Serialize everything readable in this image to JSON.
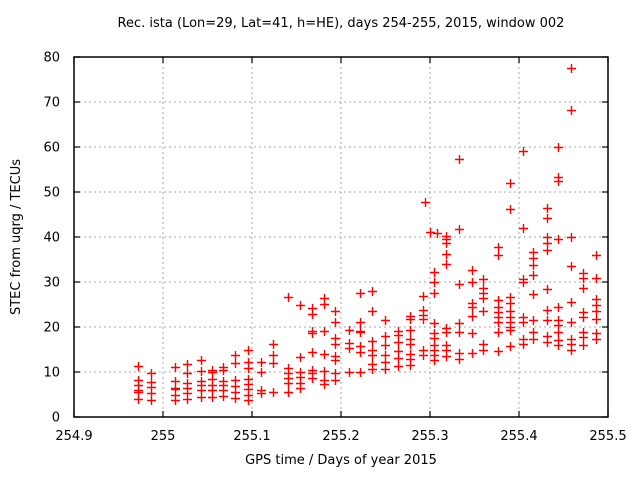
{
  "window": {
    "background": "#ffffff"
  },
  "chart_data": {
    "type": "scatter",
    "title": "Rec. ista (Lon=29, Lat=41, h=HE), days 254-255, 2015, window 002",
    "xlabel": "GPS time / Days of year 2015",
    "ylabel": "STEC from uqrg / TECUs",
    "xlim": [
      254.9,
      255.5
    ],
    "ylim": [
      0,
      80
    ],
    "xticks": [
      254.9,
      255.0,
      255.1,
      255.2,
      255.3,
      255.4,
      255.5
    ],
    "xtick_labels": [
      "254.9",
      "255",
      "255.1",
      "255.2",
      "255.3",
      "255.4",
      "255.5"
    ],
    "yticks": [
      0,
      10,
      20,
      30,
      40,
      50,
      60,
      70,
      80
    ],
    "ytick_labels": [
      "0",
      "10",
      "20",
      "30",
      "40",
      "50",
      "60",
      "70",
      "80"
    ],
    "grid": true,
    "legend": "none",
    "marker": {
      "shape": "plus",
      "color": "#ff0000",
      "size": 9
    },
    "grid_color": "#a8a8a8",
    "border_color": "#000000",
    "series": [
      {
        "name": "STEC",
        "columns": [
          {
            "x": 254.972,
            "y": [
              11.3,
              8.2,
              7.1,
              5.9,
              5.6,
              3.9
            ]
          },
          {
            "x": 254.986,
            "y": [
              9.7,
              7.8,
              6.6,
              5.4,
              3.8
            ]
          },
          {
            "x": 255.013,
            "y": [
              11.2,
              7.9,
              6.5,
              6.2,
              4.9,
              3.8
            ]
          },
          {
            "x": 255.027,
            "y": [
              11.8,
              9.7,
              7.5,
              6.4,
              5.3,
              3.9
            ]
          },
          {
            "x": 255.043,
            "y": [
              12.7,
              10.3,
              8.1,
              7.1,
              6.0,
              4.5
            ]
          },
          {
            "x": 255.055,
            "y": [
              10.4,
              10.0,
              8.4,
              7.1,
              5.9,
              4.5
            ]
          },
          {
            "x": 255.067,
            "y": [
              11.2,
              10.4,
              8.1,
              7.1,
              6.0,
              4.7
            ]
          },
          {
            "x": 255.081,
            "y": [
              13.7,
              12.1,
              8.2,
              6.9,
              5.6,
              4.2
            ]
          },
          {
            "x": 255.095,
            "y": [
              15.0,
              12.3,
              11.0,
              8.4,
              7.3,
              6.2,
              4.9,
              3.8
            ]
          },
          {
            "x": 255.11,
            "y": [
              12.3,
              10.1,
              6.0,
              5.3
            ]
          },
          {
            "x": 255.124,
            "y": [
              16.2,
              13.8,
              11.9,
              5.6
            ]
          },
          {
            "x": 255.14,
            "y": [
              26.7,
              10.8,
              9.7,
              8.6,
              7.5,
              5.6
            ]
          },
          {
            "x": 255.154,
            "y": [
              25.0,
              13.4,
              10.1,
              9.0,
              7.5,
              6.4
            ]
          },
          {
            "x": 255.167,
            "y": [
              24.2,
              22.9,
              19.2,
              18.7,
              14.5,
              10.4,
              9.7,
              8.6
            ]
          },
          {
            "x": 255.181,
            "y": [
              26.4,
              25.1,
              19.1,
              14.1,
              10.3,
              8.2,
              7.3
            ]
          },
          {
            "x": 255.193,
            "y": [
              23.6,
              21.2,
              17.5,
              16.2,
              13.6,
              12.6,
              9.7,
              8.3
            ]
          },
          {
            "x": 255.209,
            "y": [
              19.3,
              16.4,
              15.3,
              10.1
            ]
          },
          {
            "x": 255.221,
            "y": [
              27.6,
              21.2,
              19.2,
              18.9,
              15.8,
              14.4,
              9.9
            ]
          },
          {
            "x": 255.235,
            "y": [
              28.1,
              23.6,
              16.8,
              14.9,
              13.7,
              11.8,
              10.7
            ]
          },
          {
            "x": 255.249,
            "y": [
              21.6,
              17.9,
              16.1,
              13.7,
              12.2,
              10.7
            ]
          },
          {
            "x": 255.264,
            "y": [
              19.2,
              18.2,
              16.6,
              14.7,
              13.2,
              11.3
            ]
          },
          {
            "x": 255.277,
            "y": [
              22.5,
              21.8,
              19.4,
              17.4,
              16.3,
              13.9,
              13.0,
              11.6
            ]
          },
          {
            "x": 255.292,
            "y": [
              26.9,
              23.8,
              22.7,
              21.7,
              14.8,
              13.7
            ]
          },
          {
            "x": 255.294,
            "y": [
              47.8
            ]
          },
          {
            "x": 255.3,
            "y": [
              41.2
            ]
          },
          {
            "x": 255.304,
            "y": [
              32.3,
              30.1,
              27.5,
              20.8,
              18.6,
              17.5,
              16.0,
              14.9,
              13.8,
              12.7
            ]
          },
          {
            "x": 255.308,
            "y": [
              41.0
            ]
          },
          {
            "x": 255.318,
            "y": [
              40.2,
              39.5,
              38.6,
              36.2,
              34.1,
              19.8,
              18.8,
              16.0,
              14.9,
              13.5
            ]
          },
          {
            "x": 255.333,
            "y": [
              57.3,
              41.7,
              29.6,
              21.0,
              19.0,
              14.2,
              13.0
            ]
          },
          {
            "x": 255.347,
            "y": [
              32.7,
              30.1,
              25.4,
              24.5,
              22.4,
              18.7,
              14.3
            ]
          },
          {
            "x": 255.36,
            "y": [
              30.6,
              28.6,
              27.5,
              26.4,
              23.6,
              16.2,
              15.0
            ]
          },
          {
            "x": 255.376,
            "y": [
              37.7,
              36.0,
              26.0,
              24.5,
              23.4,
              22.2,
              21.2,
              19.0,
              14.7
            ]
          },
          {
            "x": 255.39,
            "y": [
              52.1,
              46.2,
              26.6,
              25.4,
              23.6,
              22.2,
              21.2,
              19.9,
              19.3,
              15.8
            ]
          },
          {
            "x": 255.404,
            "y": [
              59.2,
              41.9,
              30.6,
              30.0,
              22.2,
              21.2,
              17.3,
              16.2
            ]
          },
          {
            "x": 255.416,
            "y": [
              36.7,
              35.3,
              33.8,
              31.6,
              27.3,
              21.6,
              19.0,
              17.3
            ]
          },
          {
            "x": 255.431,
            "y": [
              46.4,
              44.2,
              39.9,
              38.7,
              37.1,
              28.4,
              23.8,
              21.6,
              18.0,
              16.7
            ]
          },
          {
            "x": 255.444,
            "y": [
              59.9,
              53.4,
              52.5,
              39.5,
              24.5,
              21.6,
              20.4,
              19.0,
              17.1,
              16.0
            ]
          },
          {
            "x": 255.458,
            "y": [
              77.5,
              68.2,
              39.9,
              33.6,
              25.6,
              21.2,
              17.3,
              16.2,
              14.9
            ]
          },
          {
            "x": 255.472,
            "y": [
              31.9,
              30.8,
              28.6,
              23.4,
              22.3,
              19.0,
              17.7,
              16.0
            ]
          },
          {
            "x": 255.486,
            "y": [
              36.0,
              31.0,
              26.2,
              24.9,
              23.6,
              21.7,
              18.7,
              17.3
            ]
          }
        ]
      }
    ]
  }
}
